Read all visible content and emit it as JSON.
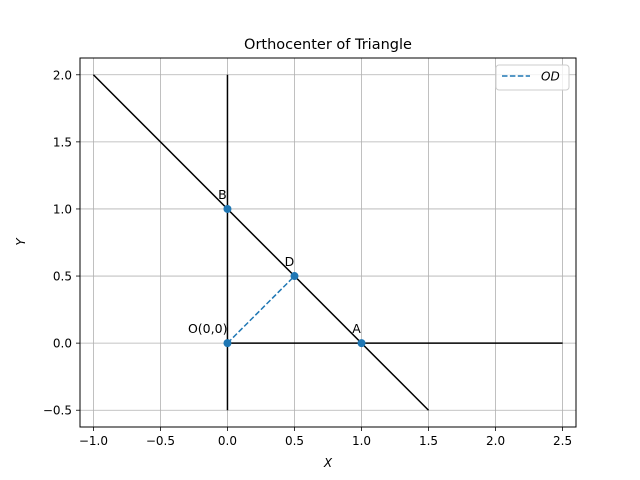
{
  "chart_data": {
    "type": "line",
    "title": "Orthocenter of Triangle",
    "xlabel": "X",
    "ylabel": "Y",
    "xlim": [
      -1.1,
      2.6
    ],
    "ylim": [
      -0.625,
      2.125
    ],
    "xticks": [
      -1.0,
      -0.5,
      0.0,
      0.5,
      1.0,
      1.5,
      2.0,
      2.5
    ],
    "xtick_labels": [
      "−1.0",
      "−0.5",
      "0.0",
      "0.5",
      "1.0",
      "1.5",
      "2.0",
      "2.5"
    ],
    "yticks": [
      -0.5,
      0.0,
      0.5,
      1.0,
      1.5,
      2.0
    ],
    "ytick_labels": [
      "−0.5",
      "0.0",
      "0.5",
      "1.0",
      "1.5",
      "2.0"
    ],
    "grid": true,
    "lines": [
      {
        "name": "line-ab",
        "x": [
          -1.0,
          1.5
        ],
        "y": [
          2.0,
          -0.5
        ],
        "color": "#000000",
        "style": "solid"
      },
      {
        "name": "y-axis-line",
        "x": [
          0.0,
          0.0
        ],
        "y": [
          -0.5,
          2.0
        ],
        "color": "#000000",
        "style": "solid"
      },
      {
        "name": "x-axis-line",
        "x": [
          0.0,
          2.5
        ],
        "y": [
          0.0,
          0.0
        ],
        "color": "#000000",
        "style": "solid"
      },
      {
        "name": "od-line",
        "x": [
          0.0,
          0.5
        ],
        "y": [
          0.0,
          0.5
        ],
        "color": "#1f77b4",
        "style": "dashed"
      }
    ],
    "points": [
      {
        "label": "O(0,0)",
        "x": 0.0,
        "y": 0.0,
        "label_anchor": "end"
      },
      {
        "label": "A",
        "x": 1.0,
        "y": 0.0,
        "label_anchor": "middle"
      },
      {
        "label": "B",
        "x": 0.0,
        "y": 1.0,
        "label_anchor": "middle"
      },
      {
        "label": "D",
        "x": 0.5,
        "y": 0.5,
        "label_anchor": "middle"
      }
    ],
    "point_color": "#1f77b4",
    "legend": {
      "position": "top-right",
      "entries": [
        {
          "label": "OD",
          "color": "#1f77b4",
          "style": "dashed"
        }
      ]
    }
  }
}
